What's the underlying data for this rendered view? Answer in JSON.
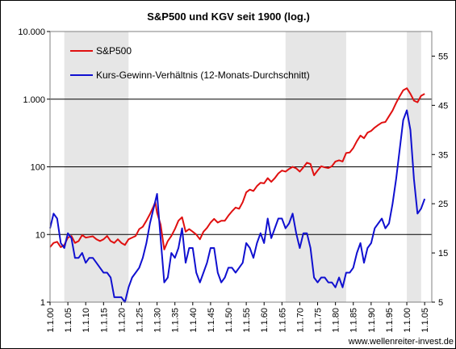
{
  "chart_data": {
    "type": "line",
    "title": "S&P500 und KGV seit 1900 (log.)",
    "source": "www.wellenreiter-invest.de",
    "y_left": {
      "scale": "log",
      "range": [
        1,
        10000
      ],
      "ticks": [
        {
          "v": 1,
          "label": "1"
        },
        {
          "v": 10,
          "label": "10"
        },
        {
          "v": 100,
          "label": "100"
        },
        {
          "v": 1000,
          "label": "1.000"
        },
        {
          "v": 10000,
          "label": "10.000"
        }
      ]
    },
    "y_right": {
      "scale": "linear",
      "range": [
        5,
        60
      ],
      "ticks": [
        5,
        15,
        25,
        35,
        45,
        55
      ]
    },
    "x_range": [
      1900,
      2007
    ],
    "x_ticks": [
      {
        "v": 1900,
        "label": "1.1.00"
      },
      {
        "v": 1905,
        "label": "1.1.05"
      },
      {
        "v": 1910,
        "label": "1.1.10"
      },
      {
        "v": 1915,
        "label": "1.1.15"
      },
      {
        "v": 1920,
        "label": "1.1.20"
      },
      {
        "v": 1925,
        "label": "1.1.25"
      },
      {
        "v": 1930,
        "label": "1.1.30"
      },
      {
        "v": 1935,
        "label": "1.1.35"
      },
      {
        "v": 1940,
        "label": "1.1.40"
      },
      {
        "v": 1945,
        "label": "1.1.45"
      },
      {
        "v": 1950,
        "label": "1.1.50"
      },
      {
        "v": 1955,
        "label": "1.1.55"
      },
      {
        "v": 1960,
        "label": "1.1.60"
      },
      {
        "v": 1965,
        "label": "1.1.65"
      },
      {
        "v": 1970,
        "label": "1.1.70"
      },
      {
        "v": 1975,
        "label": "1.1.75"
      },
      {
        "v": 1980,
        "label": "1.1.80"
      },
      {
        "v": 1985,
        "label": "1.1.85"
      },
      {
        "v": 1990,
        "label": "1.1.90"
      },
      {
        "v": 1995,
        "label": "1.1.95"
      },
      {
        "v": 2000,
        "label": "1.1.00"
      },
      {
        "v": 2005,
        "label": "1.1.05"
      }
    ],
    "shaded_periods": [
      [
        1904,
        1922
      ],
      [
        1966,
        1983
      ],
      [
        2000,
        2004
      ]
    ],
    "series": [
      {
        "name": "S&P500",
        "axis": "left",
        "color": "#e01010",
        "points": [
          [
            1900,
            6.5
          ],
          [
            1901,
            7.5
          ],
          [
            1902,
            7.8
          ],
          [
            1903,
            6.5
          ],
          [
            1904,
            7
          ],
          [
            1905,
            9
          ],
          [
            1906,
            9.5
          ],
          [
            1907,
            7.5
          ],
          [
            1908,
            8
          ],
          [
            1909,
            9.8
          ],
          [
            1910,
            9
          ],
          [
            1911,
            9.2
          ],
          [
            1912,
            9.4
          ],
          [
            1913,
            8.5
          ],
          [
            1914,
            8
          ],
          [
            1915,
            8.5
          ],
          [
            1916,
            9.5
          ],
          [
            1917,
            8
          ],
          [
            1918,
            7.5
          ],
          [
            1919,
            8.5
          ],
          [
            1920,
            7.5
          ],
          [
            1921,
            7
          ],
          [
            1922,
            8.5
          ],
          [
            1923,
            9
          ],
          [
            1924,
            9.5
          ],
          [
            1925,
            12
          ],
          [
            1926,
            13
          ],
          [
            1927,
            16
          ],
          [
            1928,
            20
          ],
          [
            1929,
            26
          ],
          [
            1929.5,
            30
          ],
          [
            1930,
            21
          ],
          [
            1931,
            14
          ],
          [
            1932,
            6
          ],
          [
            1933,
            8
          ],
          [
            1934,
            9.5
          ],
          [
            1935,
            12
          ],
          [
            1936,
            16
          ],
          [
            1937,
            18
          ],
          [
            1938,
            11
          ],
          [
            1939,
            12
          ],
          [
            1940,
            11
          ],
          [
            1941,
            10
          ],
          [
            1942,
            8.5
          ],
          [
            1943,
            11
          ],
          [
            1944,
            12.5
          ],
          [
            1945,
            15
          ],
          [
            1946,
            17
          ],
          [
            1947,
            15
          ],
          [
            1948,
            16
          ],
          [
            1949,
            16
          ],
          [
            1950,
            19
          ],
          [
            1951,
            22
          ],
          [
            1952,
            25
          ],
          [
            1953,
            24
          ],
          [
            1954,
            30
          ],
          [
            1955,
            42
          ],
          [
            1956,
            46
          ],
          [
            1957,
            44
          ],
          [
            1958,
            52
          ],
          [
            1959,
            58
          ],
          [
            1960,
            57
          ],
          [
            1961,
            68
          ],
          [
            1962,
            60
          ],
          [
            1963,
            68
          ],
          [
            1964,
            80
          ],
          [
            1965,
            88
          ],
          [
            1966,
            85
          ],
          [
            1967,
            93
          ],
          [
            1968,
            100
          ],
          [
            1969,
            95
          ],
          [
            1970,
            85
          ],
          [
            1971,
            98
          ],
          [
            1972,
            115
          ],
          [
            1973,
            110
          ],
          [
            1974,
            75
          ],
          [
            1975,
            88
          ],
          [
            1976,
            102
          ],
          [
            1977,
            98
          ],
          [
            1978,
            96
          ],
          [
            1979,
            102
          ],
          [
            1980,
            120
          ],
          [
            1981,
            125
          ],
          [
            1982,
            120
          ],
          [
            1983,
            160
          ],
          [
            1984,
            163
          ],
          [
            1985,
            190
          ],
          [
            1986,
            240
          ],
          [
            1987,
            290
          ],
          [
            1988,
            265
          ],
          [
            1989,
            320
          ],
          [
            1990,
            340
          ],
          [
            1991,
            380
          ],
          [
            1992,
            415
          ],
          [
            1993,
            450
          ],
          [
            1994,
            460
          ],
          [
            1995,
            560
          ],
          [
            1996,
            680
          ],
          [
            1997,
            880
          ],
          [
            1998,
            1100
          ],
          [
            1999,
            1350
          ],
          [
            2000,
            1450
          ],
          [
            2001,
            1200
          ],
          [
            2002,
            950
          ],
          [
            2003,
            900
          ],
          [
            2004,
            1120
          ],
          [
            2005,
            1200
          ]
        ]
      },
      {
        "name": "Kurs-Gewinn-Verhältnis (12-Monats-Durchschnitt)",
        "axis": "right",
        "color": "#1010d0",
        "points": [
          [
            1900,
            20
          ],
          [
            1901,
            23
          ],
          [
            1902,
            22
          ],
          [
            1903,
            17
          ],
          [
            1904,
            16
          ],
          [
            1905,
            19
          ],
          [
            1906,
            18
          ],
          [
            1907,
            14
          ],
          [
            1908,
            14
          ],
          [
            1909,
            15
          ],
          [
            1910,
            13
          ],
          [
            1911,
            14
          ],
          [
            1912,
            14
          ],
          [
            1913,
            13
          ],
          [
            1914,
            12
          ],
          [
            1915,
            11
          ],
          [
            1916,
            11
          ],
          [
            1917,
            10
          ],
          [
            1918,
            6
          ],
          [
            1919,
            6
          ],
          [
            1920,
            6
          ],
          [
            1921,
            5
          ],
          [
            1922,
            8
          ],
          [
            1923,
            10
          ],
          [
            1924,
            11
          ],
          [
            1925,
            12
          ],
          [
            1926,
            14
          ],
          [
            1927,
            17
          ],
          [
            1928,
            21
          ],
          [
            1929,
            24
          ],
          [
            1930,
            27
          ],
          [
            1931,
            18
          ],
          [
            1932,
            9
          ],
          [
            1933,
            10
          ],
          [
            1934,
            15
          ],
          [
            1935,
            14
          ],
          [
            1936,
            16
          ],
          [
            1937,
            20
          ],
          [
            1938,
            13
          ],
          [
            1939,
            16
          ],
          [
            1940,
            16
          ],
          [
            1941,
            11
          ],
          [
            1942,
            9
          ],
          [
            1943,
            11
          ],
          [
            1944,
            13
          ],
          [
            1945,
            16
          ],
          [
            1946,
            16
          ],
          [
            1947,
            11
          ],
          [
            1948,
            9
          ],
          [
            1949,
            10
          ],
          [
            1950,
            12
          ],
          [
            1951,
            12
          ],
          [
            1952,
            11
          ],
          [
            1953,
            12
          ],
          [
            1954,
            13
          ],
          [
            1955,
            17
          ],
          [
            1956,
            16
          ],
          [
            1957,
            14
          ],
          [
            1958,
            17
          ],
          [
            1959,
            19
          ],
          [
            1960,
            17
          ],
          [
            1961,
            22
          ],
          [
            1962,
            18
          ],
          [
            1963,
            20
          ],
          [
            1964,
            22
          ],
          [
            1965,
            22
          ],
          [
            1966,
            20
          ],
          [
            1967,
            21
          ],
          [
            1968,
            23
          ],
          [
            1969,
            19
          ],
          [
            1970,
            16
          ],
          [
            1971,
            19
          ],
          [
            1972,
            19
          ],
          [
            1973,
            16
          ],
          [
            1974,
            10
          ],
          [
            1975,
            9
          ],
          [
            1976,
            10
          ],
          [
            1977,
            10
          ],
          [
            1978,
            9
          ],
          [
            1979,
            9
          ],
          [
            1980,
            8
          ],
          [
            1981,
            10
          ],
          [
            1982,
            8
          ],
          [
            1983,
            11
          ],
          [
            1984,
            11
          ],
          [
            1985,
            12
          ],
          [
            1986,
            15
          ],
          [
            1987,
            17
          ],
          [
            1988,
            13
          ],
          [
            1989,
            16
          ],
          [
            1990,
            17
          ],
          [
            1991,
            20
          ],
          [
            1992,
            21
          ],
          [
            1993,
            22
          ],
          [
            1994,
            20
          ],
          [
            1995,
            21
          ],
          [
            1996,
            25
          ],
          [
            1997,
            30
          ],
          [
            1998,
            36
          ],
          [
            1999,
            42
          ],
          [
            2000,
            44
          ],
          [
            2001,
            40
          ],
          [
            2002,
            30
          ],
          [
            2003,
            23
          ],
          [
            2004,
            24
          ],
          [
            2005,
            26
          ]
        ]
      }
    ]
  }
}
